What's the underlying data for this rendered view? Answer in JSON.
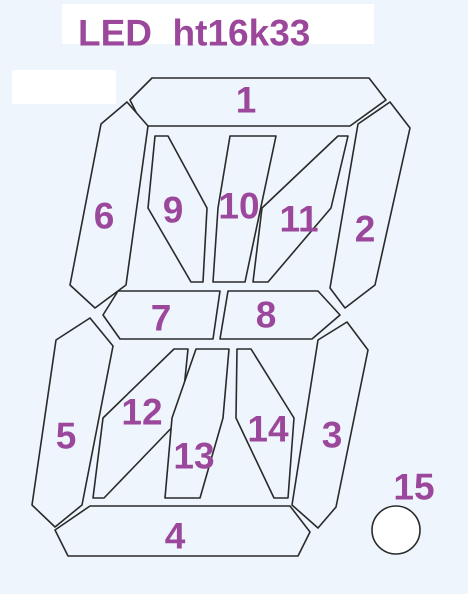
{
  "title": "LED  ht16k33",
  "label_color": "#9b479b",
  "outline_color": "#2a2a2a",
  "background_color": "#eef5fc",
  "segments": [
    {
      "name": "segment-1",
      "label": "1"
    },
    {
      "name": "segment-2",
      "label": "2"
    },
    {
      "name": "segment-3",
      "label": "3"
    },
    {
      "name": "segment-4",
      "label": "4"
    },
    {
      "name": "segment-5",
      "label": "5"
    },
    {
      "name": "segment-6",
      "label": "6"
    },
    {
      "name": "segment-7",
      "label": "7"
    },
    {
      "name": "segment-8",
      "label": "8"
    },
    {
      "name": "segment-9",
      "label": "9"
    },
    {
      "name": "segment-10",
      "label": "10"
    },
    {
      "name": "segment-11",
      "label": "11"
    },
    {
      "name": "segment-12",
      "label": "12"
    },
    {
      "name": "segment-13",
      "label": "13"
    },
    {
      "name": "segment-14",
      "label": "14"
    },
    {
      "name": "decimal-point",
      "label": "15"
    }
  ]
}
